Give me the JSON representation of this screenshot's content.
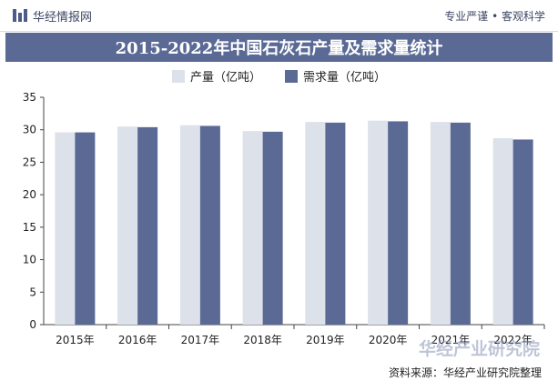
{
  "header": {
    "brand": "华经情报网",
    "slogan": "专业严谨 • 客观科学"
  },
  "footer": {
    "source": "资料来源：华经产业研究院整理",
    "watermark": "华经产业研究院"
  },
  "colors": {
    "supply": "#dde1ea",
    "demand": "#5b6a95",
    "title_bg": "#5b6a95"
  },
  "chart_data": {
    "type": "bar",
    "title": "2015-2022年中国石灰石产量及需求量统计",
    "categories": [
      "2015年",
      "2016年",
      "2017年",
      "2018年",
      "2019年",
      "2020年",
      "2021年",
      "2022年"
    ],
    "series": [
      {
        "name": "产量（亿吨）",
        "values": [
          29.6,
          30.5,
          30.7,
          29.8,
          31.2,
          31.4,
          31.2,
          28.7
        ]
      },
      {
        "name": "需求量（亿吨）",
        "values": [
          29.6,
          30.4,
          30.6,
          29.7,
          31.1,
          31.3,
          31.1,
          28.5
        ]
      }
    ],
    "ylim": [
      0,
      35
    ],
    "yticks": [
      0,
      5,
      10,
      15,
      20,
      25,
      30,
      35
    ],
    "grid": false,
    "legend_position": "top"
  }
}
